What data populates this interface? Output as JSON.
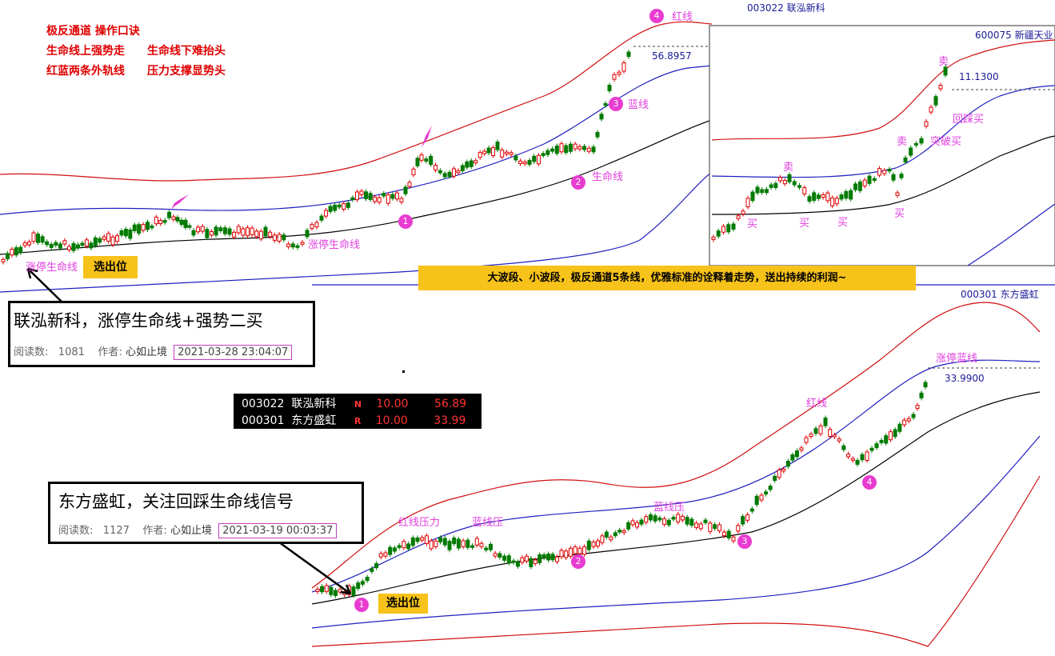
{
  "intro": {
    "line1": "极反通道 操作口诀",
    "line2a": "生命线上强势走",
    "line2b": "生命线下难抬头",
    "line3a": "红蓝两条外轨线",
    "line3b": "压力支撑显势头"
  },
  "top_chart": {
    "code": "003022  联泓新科",
    "price_label": "56.8957",
    "marks": [
      "1",
      "2",
      "3",
      "4"
    ],
    "labels": {
      "red_line": "红线",
      "blue_line": "蓝线",
      "life_line": "生命线",
      "limit_up_life1": "涨停生命线",
      "limit_up_life2": "涨停生命线",
      "select": "选出位"
    }
  },
  "inset_chart": {
    "code": "600075  新疆天业",
    "price_label": "11.1300",
    "labels": {
      "sell1": "卖",
      "sell2": "卖",
      "sell3": "卖",
      "buy1": "买",
      "buy2": "买",
      "buy3": "买",
      "buy4": "买",
      "breakout_buy": "突破买",
      "pullback_buy": "回踩买"
    }
  },
  "banner": "大波段、小波段，极反通道5条线，优雅标准的诠释着走势，送出持续的利润~",
  "article1": {
    "title": "联泓新科，涨停生命线+强势二买",
    "reads_label": "阅读数:",
    "reads": "1081",
    "author_label": "作者:",
    "author": "心如止境",
    "date": "2021-03-28 23:04:07"
  },
  "article2": {
    "title": "东方盛虹，关注回踩生命线信号",
    "reads_label": "阅读数:",
    "reads": "1127",
    "author_label": "作者:",
    "author": "心如止境",
    "date": "2021-03-19 00:03:37"
  },
  "ticker": [
    {
      "code": "003022",
      "name": "联泓新科",
      "flag": "N",
      "change": "10.00",
      "price": "56.89"
    },
    {
      "code": "000301",
      "name": "东方盛虹",
      "flag": "R",
      "change": "10.00",
      "price": "33.99"
    }
  ],
  "bottom_chart": {
    "code": "000301  东方盛虹",
    "price_label": "33.9900",
    "marks": [
      "1",
      "2",
      "3",
      "4"
    ],
    "labels": {
      "limit_up_blue": "涨停蓝线",
      "red_line": "红线",
      "red_pressure": "红线压力",
      "blue_pressure": "蓝线压",
      "blue_pressure2": "蓝线压",
      "select": "选出位"
    }
  },
  "colors": {
    "red_band": "#d01010",
    "blue_band": "#2020c0",
    "life_line": "#000000",
    "candle_up": "#e00000",
    "candle_down": "#007a00",
    "mark": "#e83cd0"
  },
  "chart_data": [
    {
      "type": "candlestick",
      "title": "003022 联泓新科",
      "last_close": 56.89,
      "last_label": 56.8957
    },
    {
      "type": "candlestick",
      "title": "600075 新疆天业",
      "last_label": 11.13
    },
    {
      "type": "candlestick",
      "title": "000301 东方盛虹",
      "last_close": 33.99,
      "last_label": 33.99
    }
  ]
}
